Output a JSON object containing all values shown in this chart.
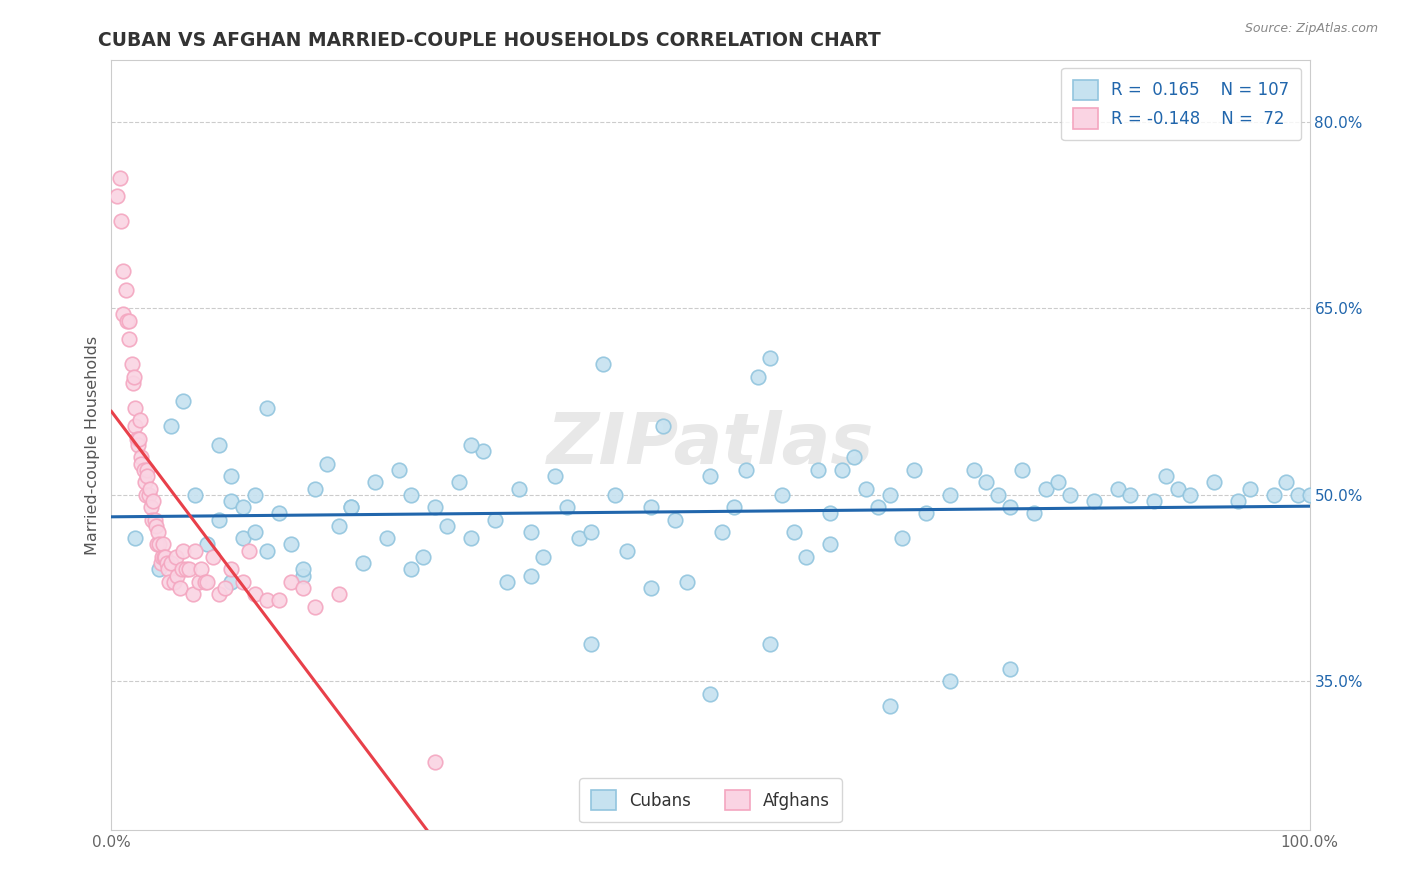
{
  "title": "CUBAN VS AFGHAN MARRIED-COUPLE HOUSEHOLDS CORRELATION CHART",
  "source": "Source: ZipAtlas.com",
  "ylabel": "Married-couple Households",
  "xlim": [
    0,
    1.0
  ],
  "ylim": [
    0.23,
    0.85
  ],
  "ytick_positions": [
    0.35,
    0.5,
    0.65,
    0.8
  ],
  "ytick_labels": [
    "35.0%",
    "50.0%",
    "65.0%",
    "80.0%"
  ],
  "cuban_R": 0.165,
  "cuban_N": 107,
  "afghan_R": -0.148,
  "afghan_N": 72,
  "cuban_color": "#92c5de",
  "cuban_fill": "#c6e2f0",
  "afghan_color": "#f4a6c0",
  "afghan_fill": "#fad4e3",
  "trend_cuban_color": "#2166ac",
  "trend_afghan_color": "#e8404a",
  "trend_afghan_dashed_color": "#f4a6c0",
  "cuban_x": [
    0.02,
    0.04,
    0.05,
    0.06,
    0.07,
    0.08,
    0.09,
    0.09,
    0.1,
    0.1,
    0.11,
    0.11,
    0.12,
    0.12,
    0.13,
    0.14,
    0.15,
    0.16,
    0.17,
    0.18,
    0.19,
    0.2,
    0.21,
    0.22,
    0.23,
    0.24,
    0.25,
    0.26,
    0.27,
    0.28,
    0.29,
    0.3,
    0.31,
    0.32,
    0.33,
    0.34,
    0.35,
    0.36,
    0.37,
    0.38,
    0.39,
    0.4,
    0.41,
    0.42,
    0.43,
    0.45,
    0.46,
    0.47,
    0.48,
    0.5,
    0.51,
    0.52,
    0.53,
    0.54,
    0.55,
    0.56,
    0.57,
    0.58,
    0.59,
    0.6,
    0.61,
    0.62,
    0.63,
    0.64,
    0.65,
    0.66,
    0.67,
    0.68,
    0.7,
    0.72,
    0.73,
    0.74,
    0.75,
    0.76,
    0.77,
    0.78,
    0.79,
    0.8,
    0.82,
    0.84,
    0.85,
    0.87,
    0.88,
    0.89,
    0.9,
    0.92,
    0.94,
    0.95,
    0.97,
    0.98,
    0.99,
    1.0,
    0.1,
    0.13,
    0.16,
    0.2,
    0.25,
    0.3,
    0.35,
    0.4,
    0.45,
    0.5,
    0.55,
    0.6,
    0.65,
    0.7,
    0.75
  ],
  "cuban_y": [
    0.465,
    0.44,
    0.555,
    0.575,
    0.5,
    0.46,
    0.48,
    0.54,
    0.495,
    0.515,
    0.465,
    0.49,
    0.47,
    0.5,
    0.455,
    0.485,
    0.46,
    0.435,
    0.505,
    0.525,
    0.475,
    0.49,
    0.445,
    0.51,
    0.465,
    0.52,
    0.5,
    0.45,
    0.49,
    0.475,
    0.51,
    0.465,
    0.535,
    0.48,
    0.43,
    0.505,
    0.47,
    0.45,
    0.515,
    0.49,
    0.465,
    0.47,
    0.605,
    0.5,
    0.455,
    0.49,
    0.555,
    0.48,
    0.43,
    0.515,
    0.47,
    0.49,
    0.52,
    0.595,
    0.61,
    0.5,
    0.47,
    0.45,
    0.52,
    0.485,
    0.52,
    0.53,
    0.505,
    0.49,
    0.5,
    0.465,
    0.52,
    0.485,
    0.5,
    0.52,
    0.51,
    0.5,
    0.49,
    0.52,
    0.485,
    0.505,
    0.51,
    0.5,
    0.495,
    0.505,
    0.5,
    0.495,
    0.515,
    0.505,
    0.5,
    0.51,
    0.495,
    0.505,
    0.5,
    0.51,
    0.5,
    0.5,
    0.43,
    0.57,
    0.44,
    0.49,
    0.44,
    0.54,
    0.435,
    0.38,
    0.425,
    0.34,
    0.38,
    0.46,
    0.33,
    0.35,
    0.36
  ],
  "afghan_x": [
    0.005,
    0.007,
    0.008,
    0.01,
    0.01,
    0.012,
    0.013,
    0.015,
    0.015,
    0.017,
    0.018,
    0.019,
    0.02,
    0.02,
    0.021,
    0.022,
    0.023,
    0.024,
    0.025,
    0.025,
    0.027,
    0.028,
    0.029,
    0.03,
    0.03,
    0.031,
    0.032,
    0.033,
    0.034,
    0.035,
    0.036,
    0.037,
    0.038,
    0.039,
    0.04,
    0.041,
    0.042,
    0.043,
    0.044,
    0.045,
    0.046,
    0.047,
    0.048,
    0.05,
    0.052,
    0.054,
    0.055,
    0.057,
    0.059,
    0.06,
    0.062,
    0.065,
    0.068,
    0.07,
    0.073,
    0.075,
    0.078,
    0.08,
    0.085,
    0.09,
    0.095,
    0.1,
    0.11,
    0.115,
    0.12,
    0.13,
    0.14,
    0.15,
    0.16,
    0.17,
    0.19,
    0.27
  ],
  "afghan_y": [
    0.74,
    0.755,
    0.72,
    0.68,
    0.645,
    0.665,
    0.64,
    0.64,
    0.625,
    0.605,
    0.59,
    0.595,
    0.57,
    0.555,
    0.545,
    0.54,
    0.545,
    0.56,
    0.53,
    0.525,
    0.52,
    0.51,
    0.5,
    0.52,
    0.515,
    0.5,
    0.505,
    0.49,
    0.48,
    0.495,
    0.48,
    0.475,
    0.46,
    0.47,
    0.46,
    0.445,
    0.45,
    0.46,
    0.45,
    0.45,
    0.445,
    0.44,
    0.43,
    0.445,
    0.43,
    0.45,
    0.435,
    0.425,
    0.44,
    0.455,
    0.44,
    0.44,
    0.42,
    0.455,
    0.43,
    0.44,
    0.43,
    0.43,
    0.45,
    0.42,
    0.425,
    0.44,
    0.43,
    0.455,
    0.42,
    0.415,
    0.415,
    0.43,
    0.425,
    0.41,
    0.42,
    0.285
  ],
  "watermark_text": "ZIPatlas",
  "title_color": "#333333",
  "axis_label_color": "#555555",
  "tick_color": "#666666",
  "grid_color": "#cccccc",
  "background_color": "#ffffff"
}
